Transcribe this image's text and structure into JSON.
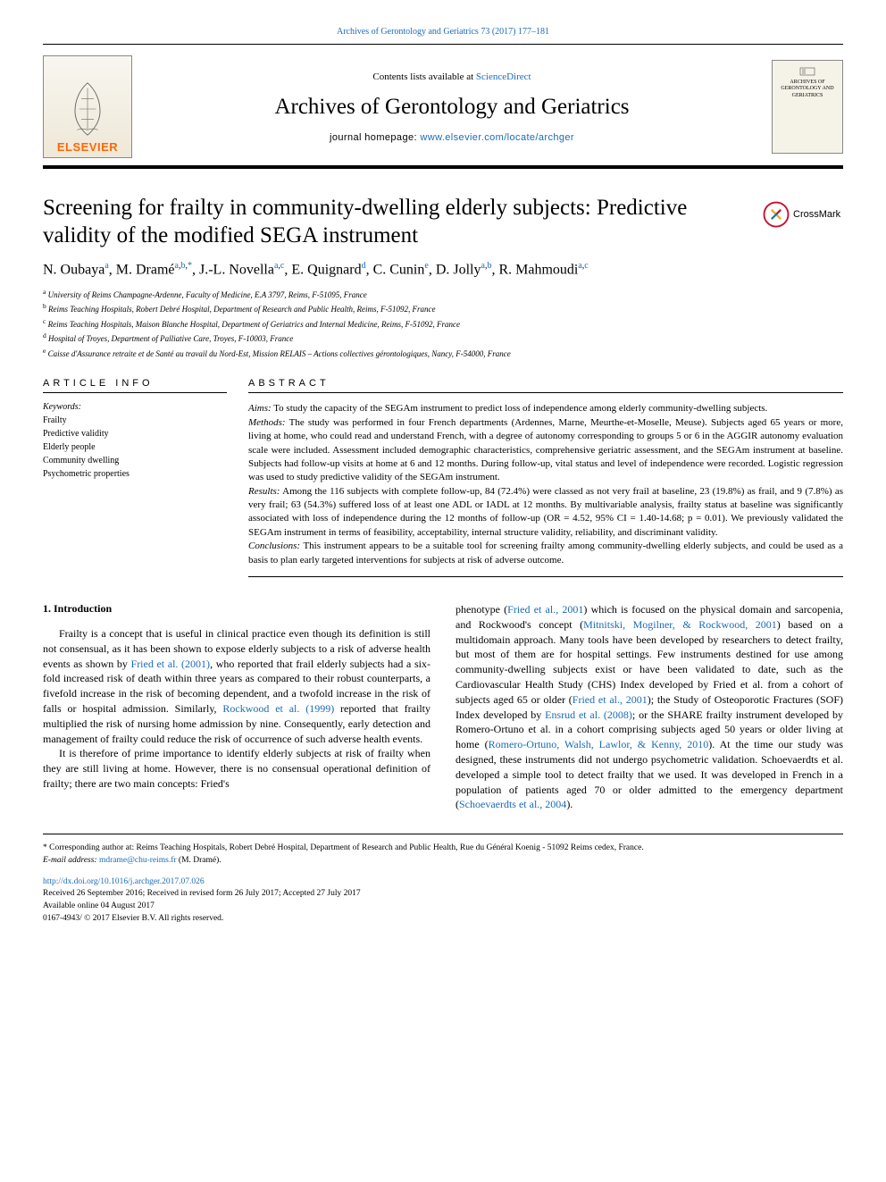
{
  "citation": {
    "journal_abbrev": "Archives of Gerontology and Geriatrics",
    "volume_pages": "73 (2017) 177–181"
  },
  "masthead": {
    "contents_prefix": "Contents lists available at ",
    "contents_link": "ScienceDirect",
    "journal_name": "Archives of Gerontology and Geriatrics",
    "homepage_prefix": "journal homepage: ",
    "homepage_link": "www.elsevier.com/locate/archger",
    "elsevier_label": "ELSEVIER",
    "cover_title": "ARCHIVES OF GERONTOLOGY AND GERIATRICS"
  },
  "title": "Screening for frailty in community-dwelling elderly subjects: Predictive validity of the modified SEGA instrument",
  "crossmark_label": "CrossMark",
  "authors": [
    {
      "name": "N. Oubaya",
      "affs": "a"
    },
    {
      "name": "M. Dramé",
      "affs": "a,b,*"
    },
    {
      "name": "J.-L. Novella",
      "affs": "a,c"
    },
    {
      "name": "E. Quignard",
      "affs": "d"
    },
    {
      "name": "C. Cunin",
      "affs": "e"
    },
    {
      "name": "D. Jolly",
      "affs": "a,b"
    },
    {
      "name": "R. Mahmoudi",
      "affs": "a,c"
    }
  ],
  "affiliations": {
    "a": "University of Reims Champagne-Ardenne, Faculty of Medicine, E.A 3797, Reims, F-51095, France",
    "b": "Reims Teaching Hospitals, Robert Debré Hospital, Department of Research and Public Health, Reims, F-51092, France",
    "c": "Reims Teaching Hospitals, Maison Blanche Hospital, Department of Geriatrics and Internal Medicine, Reims, F-51092, France",
    "d": "Hospital of Troyes, Department of Palliative Care, Troyes, F-10003, France",
    "e": "Caisse d'Assurance retraite et de Santé au travail du Nord-Est, Mission RELAIS – Actions collectives gérontologiques, Nancy, F-54000, France"
  },
  "article_info": {
    "header": "ARTICLE INFO",
    "keywords_label": "Keywords:",
    "keywords": [
      "Frailty",
      "Predictive validity",
      "Elderly people",
      "Community dwelling",
      "Psychometric properties"
    ]
  },
  "abstract": {
    "header": "ABSTRACT",
    "aims_label": "Aims:",
    "aims": "To study the capacity of the SEGAm instrument to predict loss of independence among elderly community-dwelling subjects.",
    "methods_label": "Methods:",
    "methods": "The study was performed in four French departments (Ardennes, Marne, Meurthe-et-Moselle, Meuse). Subjects aged 65 years or more, living at home, who could read and understand French, with a degree of autonomy corresponding to groups 5 or 6 in the AGGIR autonomy evaluation scale were included. Assessment included demographic characteristics, comprehensive geriatric assessment, and the SEGAm instrument at baseline. Subjects had follow-up visits at home at 6 and 12 months. During follow-up, vital status and level of independence were recorded. Logistic regression was used to study predictive validity of the SEGAm instrument.",
    "results_label": "Results:",
    "results": "Among the 116 subjects with complete follow-up, 84 (72.4%) were classed as not very frail at baseline, 23 (19.8%) as frail, and 9 (7.8%) as very frail; 63 (54.3%) suffered loss of at least one ADL or IADL at 12 months. By multivariable analysis, frailty status at baseline was significantly associated with loss of independence during the 12 months of follow-up (OR = 4.52, 95% CI = 1.40-14.68; p = 0.01). We previously validated the SEGAm instrument in terms of feasibility, acceptability, internal structure validity, reliability, and discriminant validity.",
    "conclusions_label": "Conclusions:",
    "conclusions": "This instrument appears to be a suitable tool for screening frailty among community-dwelling elderly subjects, and could be used as a basis to plan early targeted interventions for subjects at risk of adverse outcome."
  },
  "body": {
    "section_heading": "1. Introduction",
    "col1": {
      "p1_a": "Frailty is a concept that is useful in clinical practice even though its definition is still not consensual, as it has been shown to expose elderly subjects to a risk of adverse health events as shown by ",
      "p1_link1": "Fried et al. (2001)",
      "p1_b": ", who reported that frail elderly subjects had a six-fold increased risk of death within three years as compared to their robust counterparts, a fivefold increase in the risk of becoming dependent, and a twofold increase in the risk of falls or hospital admission. Similarly, ",
      "p1_link2": "Rockwood et al. (1999)",
      "p1_c": " reported that frailty multiplied the risk of nursing home admission by nine. Consequently, early detection and management of frailty could reduce the risk of occurrence of such adverse health events.",
      "p2": "It is therefore of prime importance to identify elderly subjects at risk of frailty when they are still living at home. However, there is no consensual operational definition of frailty; there are two main concepts: Fried's"
    },
    "col2": {
      "p1_a": "phenotype (",
      "p1_link1": "Fried et al., 2001",
      "p1_b": ") which is focused on the physical domain and sarcopenia, and Rockwood's concept (",
      "p1_link2": "Mitnitski, Mogilner, & Rockwood, 2001",
      "p1_c": ") based on a multidomain approach. Many tools have been developed by researchers to detect frailty, but most of them are for hospital settings. Few instruments destined for use among community-dwelling subjects exist or have been validated to date, such as the Cardiovascular Health Study (CHS) Index developed by Fried et al. from a cohort of subjects aged 65 or older (",
      "p1_link3": "Fried et al., 2001",
      "p1_d": "); the Study of Osteoporotic Fractures (SOF) Index developed by ",
      "p1_link4": "Ensrud et al. (2008)",
      "p1_e": "; or the SHARE frailty instrument developed by Romero-Ortuno et al. in a cohort comprising subjects aged 50 years or older living at home (",
      "p1_link5": "Romero-Ortuno, Walsh, Lawlor, & Kenny, 2010",
      "p1_f": "). At the time our study was designed, these instruments did not undergo psychometric validation. Schoevaerdts et al. developed a simple tool to detect frailty that we used. It was developed in French in a population of patients aged 70 or older admitted to the emergency department (",
      "p1_link6": "Schoevaerdts et al., 2004",
      "p1_g": ")."
    }
  },
  "footnote": {
    "corr_label": "* Corresponding author at:",
    "corr_text": "Reims Teaching Hospitals, Robert Debré Hospital, Department of Research and Public Health, Rue du Général Koenig - 51092 Reims cedex, France.",
    "email_label": "E-mail address:",
    "email": "mdrame@chu-reims.fr",
    "email_person": "(M. Dramé)."
  },
  "doi": {
    "link": "http://dx.doi.org/10.1016/j.archger.2017.07.026",
    "history": "Received 26 September 2016; Received in revised form 26 July 2017; Accepted 27 July 2017",
    "online": "Available online 04 August 2017",
    "copyright": "0167-4943/ © 2017 Elsevier B.V. All rights reserved."
  },
  "colors": {
    "link": "#1a6bb8",
    "elsevier_orange": "#ff6600",
    "crossmark_red": "#c8102e",
    "crossmark_yellow": "#f0b00a",
    "crossmark_blue": "#2175bc",
    "crossmark_grey": "#888888"
  }
}
